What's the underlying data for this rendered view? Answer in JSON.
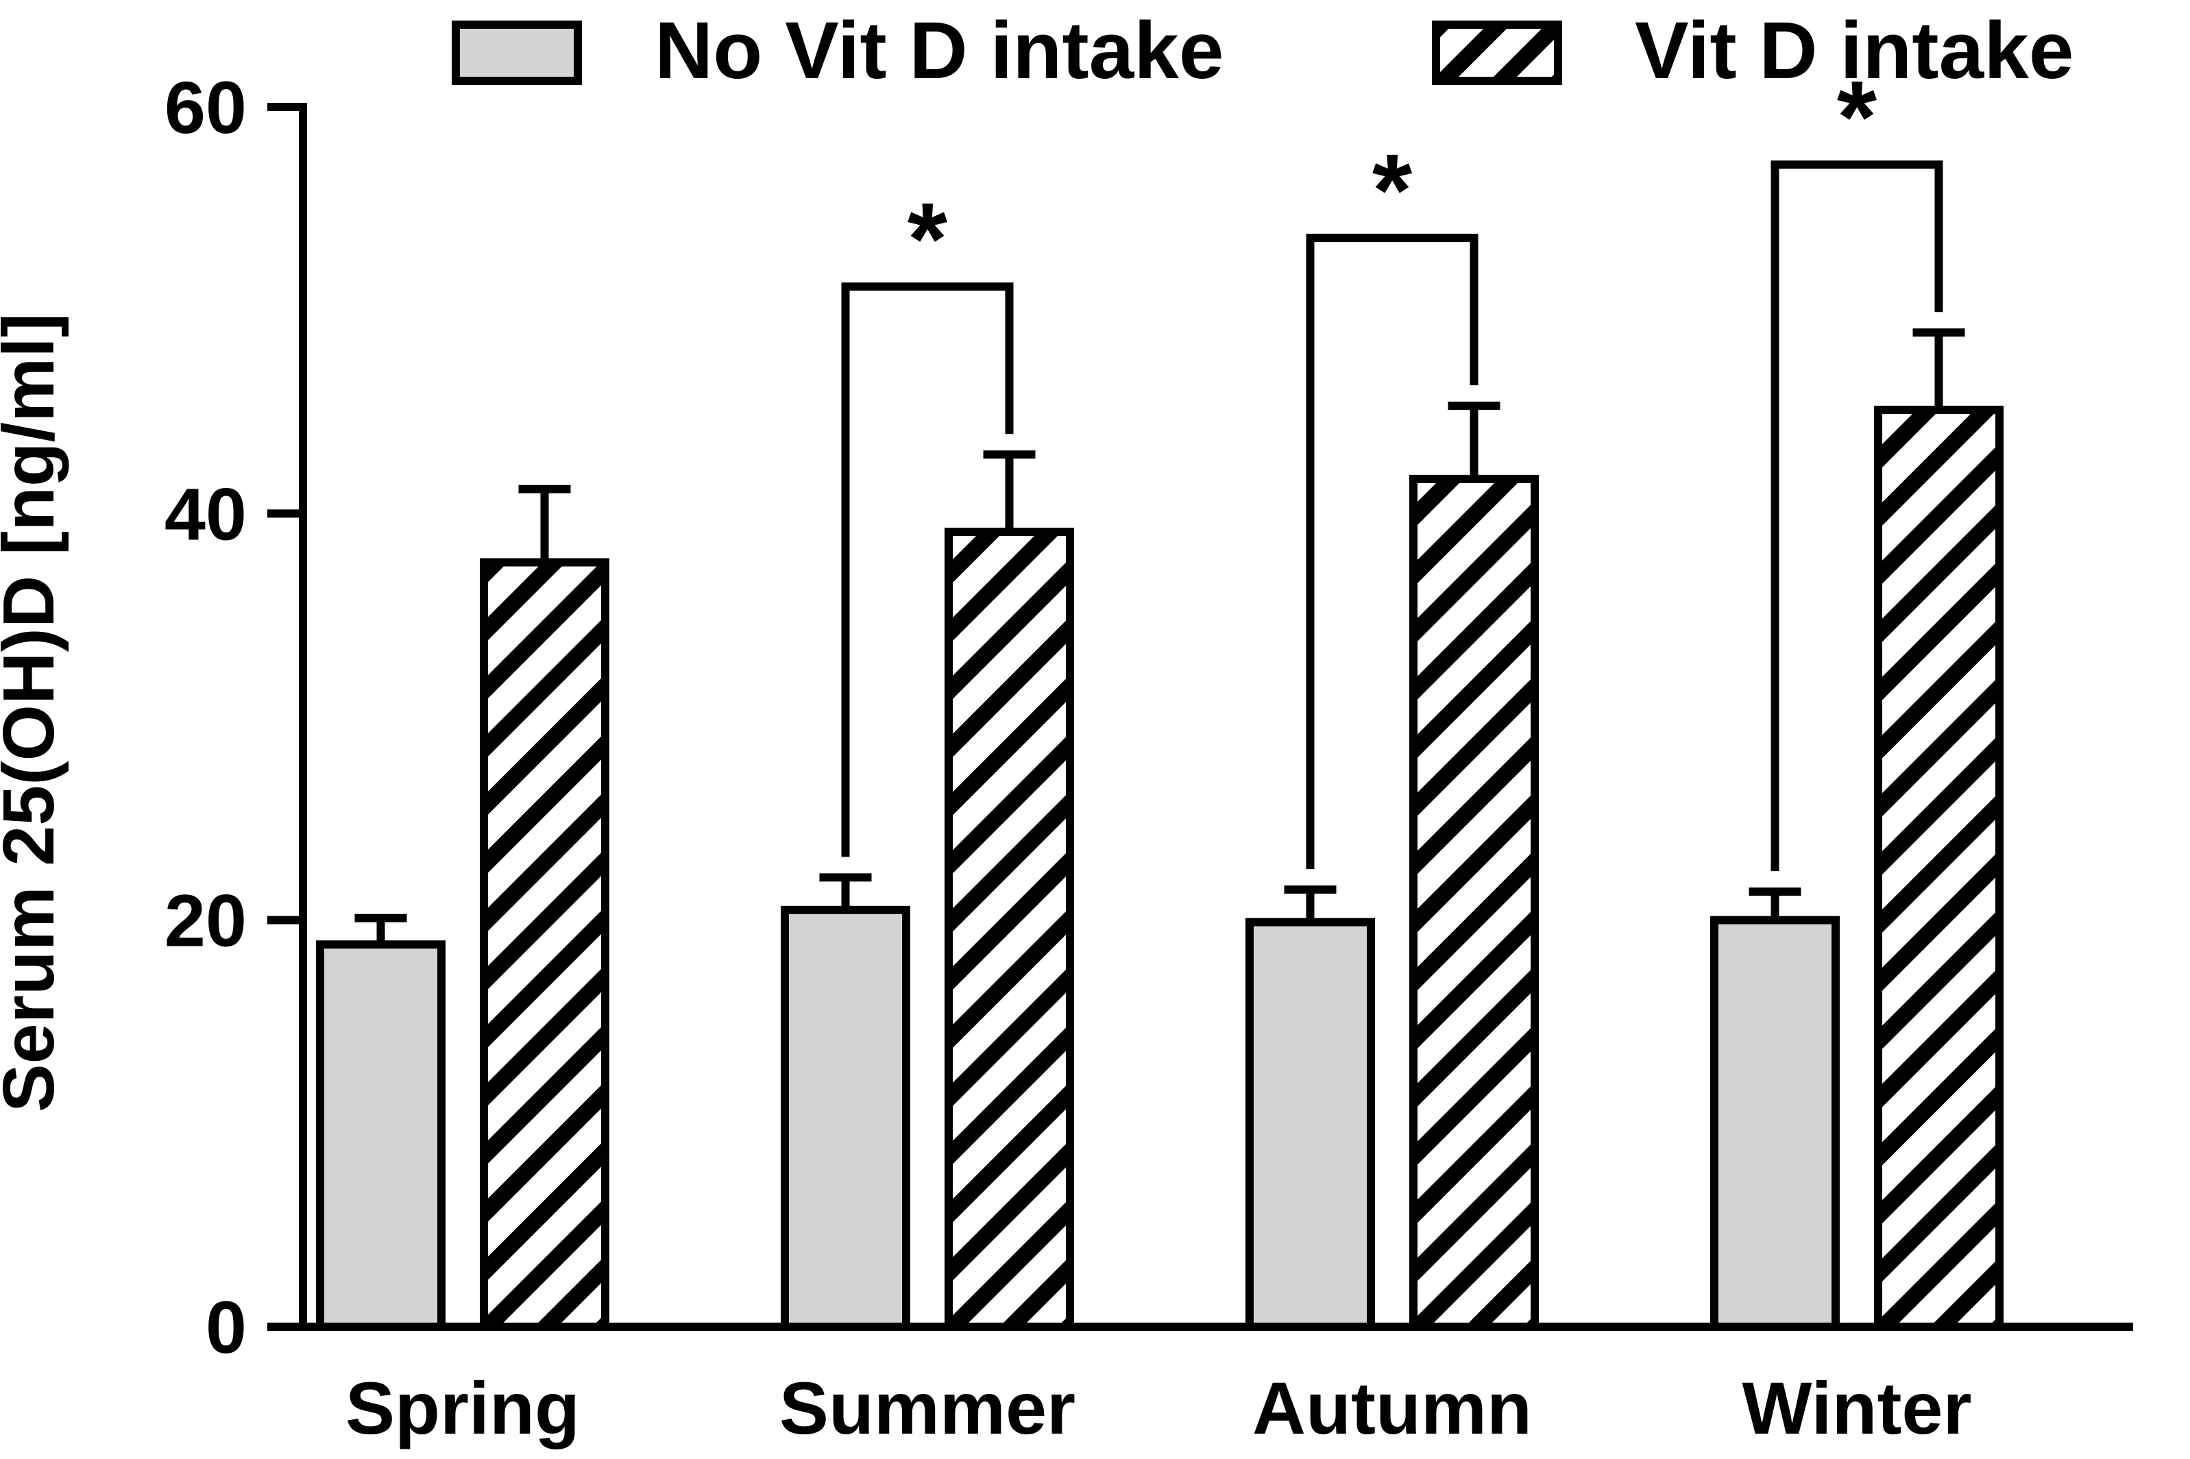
{
  "chart_data": {
    "type": "bar",
    "title": "",
    "xlabel": "",
    "ylabel": "Serum 25(OH)D [ng/ml]",
    "ylim": [
      0,
      60
    ],
    "yticks": [
      0,
      20,
      40,
      60
    ],
    "categories": [
      "Spring",
      "Summer",
      "Autumn",
      "Winter"
    ],
    "series": [
      {
        "name": "No Vit D intake",
        "fill": "solid",
        "color": "#d3d3d3",
        "values": [
          18.8,
          20.5,
          19.9,
          20.0
        ],
        "errors": [
          1.3,
          1.6,
          1.6,
          1.4
        ]
      },
      {
        "name": "Vit D intake",
        "fill": "hatched",
        "color": "#ffffff",
        "values": [
          37.6,
          39.1,
          41.7,
          45.1
        ],
        "errors": [
          3.6,
          3.8,
          3.6,
          3.8
        ]
      }
    ],
    "significance": [
      {
        "category": "Summer",
        "label": "*"
      },
      {
        "category": "Autumn",
        "label": "*"
      },
      {
        "category": "Winter",
        "label": "*"
      }
    ],
    "legend": "top",
    "grid": false
  },
  "colors": {
    "axis": "#000000",
    "no_vit_d_fill": "#d3d3d3",
    "vit_d_fill": "#ffffff",
    "hatch": "#000000"
  }
}
